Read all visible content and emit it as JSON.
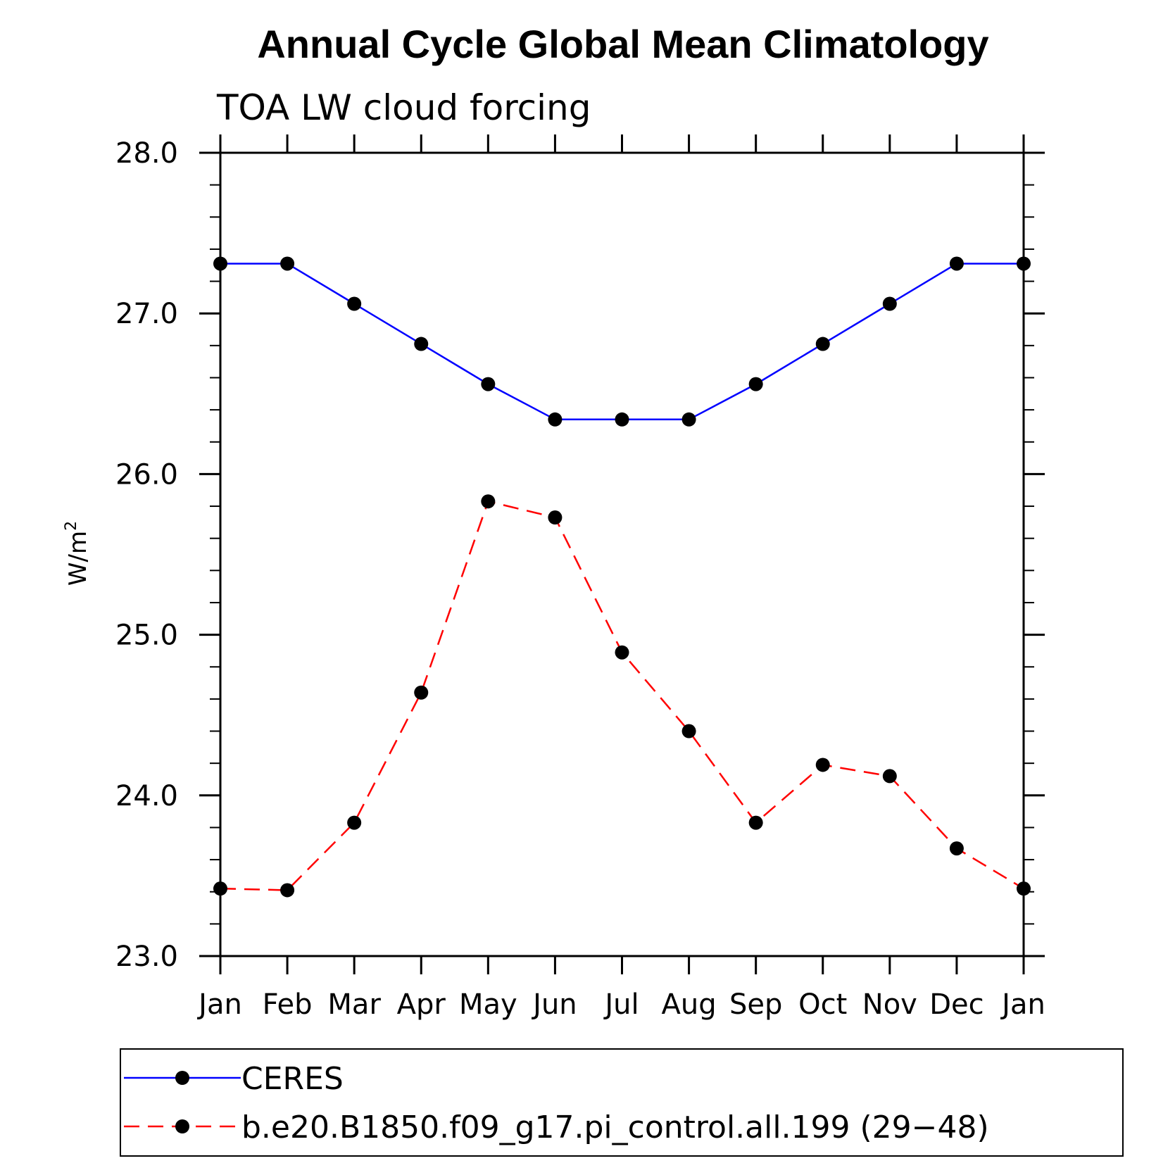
{
  "chart_data": {
    "type": "line",
    "title": "Annual Cycle Global Mean Climatology",
    "subtitle": "TOA LW cloud forcing",
    "ylabel": "W/m",
    "ylabel_superscript": "2",
    "xlabel": "",
    "categories": [
      "Jan",
      "Feb",
      "Mar",
      "Apr",
      "May",
      "Jun",
      "Jul",
      "Aug",
      "Sep",
      "Oct",
      "Nov",
      "Dec",
      "Jan"
    ],
    "ylim": [
      23.0,
      28.0
    ],
    "yticks": [
      23.0,
      24.0,
      25.0,
      26.0,
      27.0,
      28.0
    ],
    "ytick_labels": [
      "23.0",
      "24.0",
      "25.0",
      "26.0",
      "27.0",
      "28.0"
    ],
    "grid": false,
    "legend_position": "bottom",
    "series": [
      {
        "name": "CERES",
        "color": "#0000ff",
        "line_style": "solid",
        "marker": "filled-circle",
        "values": [
          27.31,
          27.31,
          27.06,
          26.81,
          26.56,
          26.34,
          26.34,
          26.34,
          26.56,
          26.81,
          27.06,
          27.31,
          27.31
        ]
      },
      {
        "name": "b.e20.B1850.f09_g17.pi_control.all.199 (29−48)",
        "color": "#ff0000",
        "line_style": "dashed",
        "marker": "filled-circle",
        "values": [
          23.42,
          23.41,
          23.83,
          24.64,
          25.83,
          25.73,
          24.89,
          24.4,
          23.83,
          24.19,
          24.12,
          23.67,
          23.42
        ]
      }
    ]
  }
}
